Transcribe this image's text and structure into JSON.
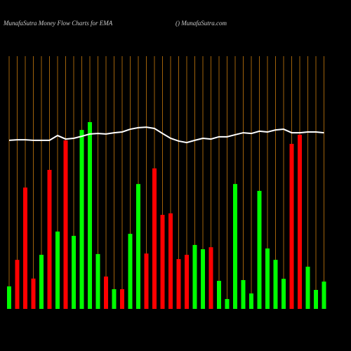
{
  "chart_data": {
    "type": "bar",
    "title": "MunafaSutra  Money Flow  Charts for EMA",
    "subtitle": "() MunafaSutra.com",
    "categories": [
      null,
      null,
      null,
      null,
      null,
      null,
      null,
      null,
      null,
      null,
      null,
      null,
      null,
      null,
      null,
      null,
      null,
      null,
      null,
      null,
      null,
      null,
      null,
      null,
      null,
      null,
      null,
      null,
      null,
      null,
      null,
      null,
      null,
      null,
      null,
      null,
      null,
      null,
      null,
      null
    ],
    "ylim": [
      0,
      100
    ],
    "grid_color": "#a0620a",
    "series": [
      {
        "type": "bar",
        "colors": [
          "#00ff00",
          "#ff0000",
          "#ff0000",
          "#ff0000",
          "#00ff00",
          "#ff0000",
          "#00ff00",
          "#ff0000",
          "#00ff00",
          "#00ff00",
          "#00ff00",
          "#00ff00",
          "#ff0000",
          "#00ff00",
          "#ff0000",
          "#00ff00",
          "#00ff00",
          "#ff0000",
          "#ff0000",
          "#ff0000",
          "#ff0000",
          "#ff0000",
          "#ff0000",
          "#00ff00",
          "#00ff00",
          "#ff0000",
          "#00ff00",
          "#00ff00",
          "#00ff00",
          "#00ff00",
          "#00ff00",
          "#00ff00",
          "#00ff00",
          "#00ff00",
          "#00ff00",
          "#ff0000",
          "#ff0000",
          "#00ff00",
          "#00ff00",
          "#00ff00"
        ],
        "values": [
          8.9,
          19.4,
          48,
          12,
          21.4,
          55,
          30.6,
          66.7,
          28.9,
          70.8,
          73.9,
          21.7,
          12.8,
          7.8,
          7.8,
          29.7,
          49.4,
          21.9,
          55.6,
          37.2,
          37.8,
          19.7,
          21.4,
          25.3,
          23.6,
          24.4,
          11.1,
          3.9,
          49.4,
          11.4,
          6.1,
          46.7,
          23.9,
          19.4,
          11.9,
          65.3,
          68.9,
          16.7,
          7.5,
          10.8
        ]
      },
      {
        "type": "line",
        "color": "#ffffff",
        "values": [
          66.7,
          66.9,
          66.9,
          66.7,
          66.7,
          66.7,
          68.6,
          67.2,
          67.5,
          68.3,
          69.2,
          69.4,
          69.2,
          69.7,
          70,
          71.1,
          71.7,
          71.9,
          71.4,
          69.4,
          67.5,
          66.4,
          65.8,
          66.7,
          67.5,
          67.2,
          68.1,
          68.1,
          68.9,
          69.7,
          69.4,
          70.3,
          70,
          70.8,
          71.1,
          69.7,
          69.7,
          70,
          70,
          69.7
        ]
      }
    ]
  }
}
